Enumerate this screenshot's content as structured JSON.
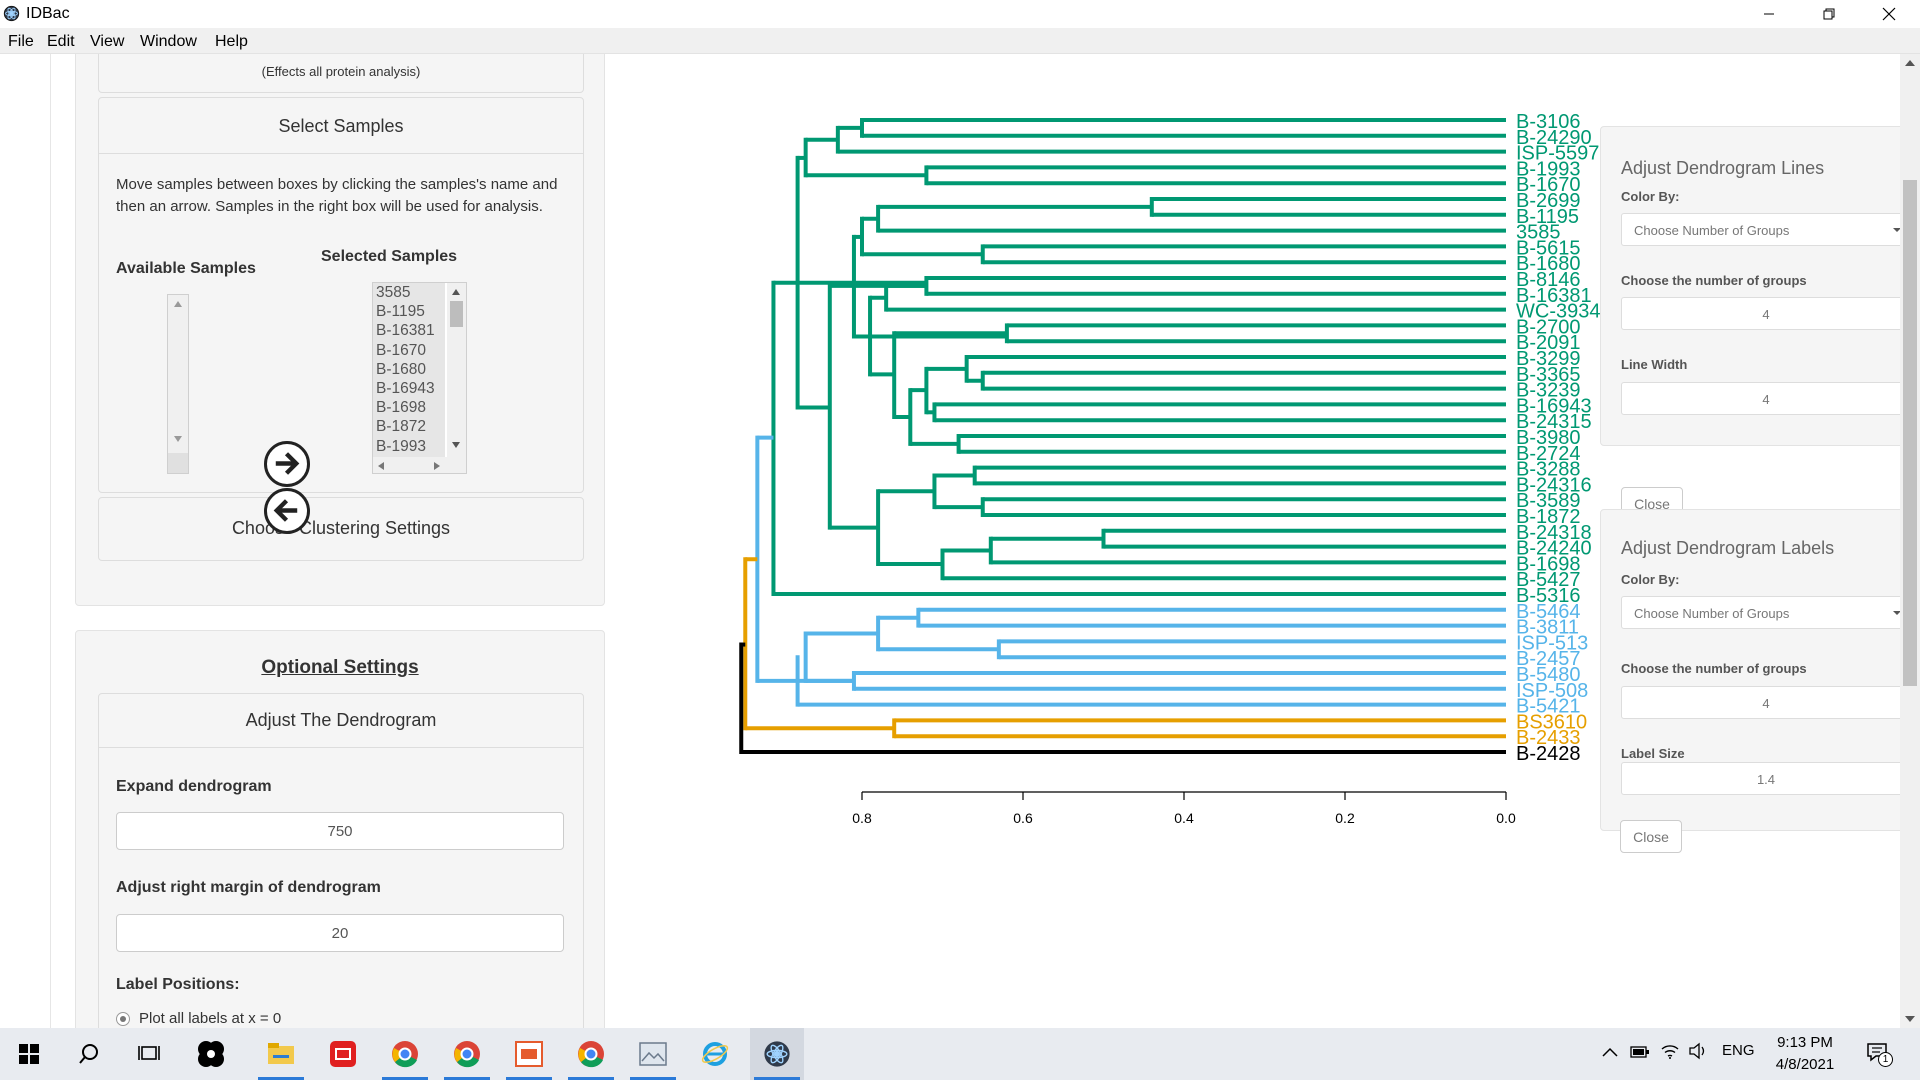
{
  "window": {
    "title": "IDBac"
  },
  "menu": [
    "File",
    "Edit",
    "View",
    "Window",
    "Help"
  ],
  "sidebar": {
    "effects_note": "(Effects all protein analysis)",
    "select_samples": {
      "header": "Select Samples",
      "instructions": "Move samples between boxes by clicking the samples's name and then an arrow. Samples in the right box will be used for analysis.",
      "available_label": "Available Samples",
      "selected_label": "Selected Samples",
      "selected_items": [
        "3585",
        "B-1195",
        "B-16381",
        "B-1670",
        "B-1680",
        "B-16943",
        "B-1698",
        "B-1872",
        "B-1993"
      ]
    },
    "clustering_header": "Choose Clustering Settings",
    "optional": {
      "title": "Optional Settings",
      "adjust_header": "Adjust The Dendrogram",
      "expand_label": "Expand dendrogram",
      "expand_value": "750",
      "margin_label": "Adjust right margin of dendrogram",
      "margin_value": "20",
      "label_positions_label": "Label Positions:",
      "radio_option": "Plot all labels at x = 0"
    }
  },
  "lines_panel": {
    "title": "Adjust Dendrogram Lines",
    "color_by_label": "Color By:",
    "color_by_value": "Choose Number of Groups",
    "groups_label": "Choose the number of groups",
    "groups_value": "4",
    "width_label": "Line Width",
    "width_value": "4",
    "close": "Close"
  },
  "labels_panel": {
    "title": "Adjust Dendrogram Labels",
    "color_by_label": "Color By:",
    "color_by_value": "Choose Number of Groups",
    "groups_label": "Choose the number of groups",
    "groups_value": "4",
    "size_label": "Label Size",
    "size_value": "1.4",
    "close": "Close"
  },
  "chart_data": {
    "type": "dendrogram",
    "orientation": "horizontal, leaves on right",
    "x_ticks": [
      "0.8",
      "0.6",
      "0.4",
      "0.2",
      "0.0"
    ],
    "xlim": [
      0.82,
      0.0
    ],
    "group_colors": [
      "#009872",
      "#56b4e9",
      "#e69f00",
      "#000000"
    ],
    "leaves": [
      {
        "label": "B-3106",
        "group": 0
      },
      {
        "label": "B-24290",
        "group": 0
      },
      {
        "label": "ISP-5597",
        "group": 0
      },
      {
        "label": "B-1993",
        "group": 0
      },
      {
        "label": "B-1670",
        "group": 0
      },
      {
        "label": "B-2699",
        "group": 0
      },
      {
        "label": "B-1195",
        "group": 0
      },
      {
        "label": "3585",
        "group": 0
      },
      {
        "label": "B-5615",
        "group": 0
      },
      {
        "label": "B-1680",
        "group": 0
      },
      {
        "label": "B-8146",
        "group": 0
      },
      {
        "label": "B-16381",
        "group": 0
      },
      {
        "label": "WC-3934",
        "group": 0
      },
      {
        "label": "B-2700",
        "group": 0
      },
      {
        "label": "B-2091",
        "group": 0
      },
      {
        "label": "B-3299",
        "group": 0
      },
      {
        "label": "B-3365",
        "group": 0
      },
      {
        "label": "B-3239",
        "group": 0
      },
      {
        "label": "B-16943",
        "group": 0
      },
      {
        "label": "B-24315",
        "group": 0
      },
      {
        "label": "B-3980",
        "group": 0
      },
      {
        "label": "B-2724",
        "group": 0
      },
      {
        "label": "B-3288",
        "group": 0
      },
      {
        "label": "B-24316",
        "group": 0
      },
      {
        "label": "B-3589",
        "group": 0
      },
      {
        "label": "B-1872",
        "group": 0
      },
      {
        "label": "B-24318",
        "group": 0
      },
      {
        "label": "B-24240",
        "group": 0
      },
      {
        "label": "B-1698",
        "group": 0
      },
      {
        "label": "B-5427",
        "group": 0
      },
      {
        "label": "B-5316",
        "group": 0
      },
      {
        "label": "B-5464",
        "group": 1
      },
      {
        "label": "B-3811",
        "group": 1
      },
      {
        "label": "ISP-513",
        "group": 1
      },
      {
        "label": "B-2457",
        "group": 1
      },
      {
        "label": "B-5480",
        "group": 1
      },
      {
        "label": "ISP-508",
        "group": 1
      },
      {
        "label": "B-5421",
        "group": 1
      },
      {
        "label": "BS3610",
        "group": 2
      },
      {
        "label": "B-2433",
        "group": 2
      },
      {
        "label": "B-2428",
        "group": 3
      }
    ],
    "segments": [
      {
        "h": 0.8,
        "a": 0,
        "b": 1,
        "g": 0
      },
      {
        "h": 0.83,
        "a": 0.5,
        "b": 2,
        "g": 0
      },
      {
        "h": 0.72,
        "a": 3,
        "b": 4,
        "g": 0
      },
      {
        "h": 0.87,
        "a": 1.25,
        "b": 3.5,
        "g": 0
      },
      {
        "h": 0.44,
        "a": 5,
        "b": 6,
        "g": 0
      },
      {
        "h": 0.78,
        "a": 5.5,
        "b": 7,
        "g": 0
      },
      {
        "h": 0.65,
        "a": 8,
        "b": 9,
        "g": 0
      },
      {
        "h": 0.8,
        "a": 6.25,
        "b": 8.5,
        "g": 0
      },
      {
        "h": 0.72,
        "a": 10,
        "b": 11,
        "g": 0
      },
      {
        "h": 0.77,
        "a": 10.5,
        "b": 12,
        "g": 0
      },
      {
        "h": 0.62,
        "a": 13,
        "b": 14,
        "g": 0
      },
      {
        "h": 0.65,
        "a": 16,
        "b": 17,
        "g": 0
      },
      {
        "h": 0.67,
        "a": 15,
        "b": 16.5,
        "g": 0
      },
      {
        "h": 0.71,
        "a": 18,
        "b": 19,
        "g": 0
      },
      {
        "h": 0.72,
        "a": 15.75,
        "b": 18.5,
        "g": 0
      },
      {
        "h": 0.68,
        "a": 20,
        "b": 21,
        "g": 0
      },
      {
        "h": 0.74,
        "a": 17.1,
        "b": 20.5,
        "g": 0
      },
      {
        "h": 0.76,
        "a": 13.5,
        "b": 18.8,
        "g": 0
      },
      {
        "h": 0.79,
        "a": 11.25,
        "b": 16.1,
        "g": 0
      },
      {
        "h": 0.81,
        "a": 7.4,
        "b": 13.7,
        "g": 0
      },
      {
        "h": 0.66,
        "a": 22,
        "b": 23,
        "g": 0
      },
      {
        "h": 0.65,
        "a": 24,
        "b": 25,
        "g": 0
      },
      {
        "h": 0.71,
        "a": 22.5,
        "b": 24.5,
        "g": 0
      },
      {
        "h": 0.5,
        "a": 26,
        "b": 27,
        "g": 0
      },
      {
        "h": 0.64,
        "a": 26.5,
        "b": 28,
        "g": 0
      },
      {
        "h": 0.7,
        "a": 27.25,
        "b": 29,
        "g": 0
      },
      {
        "h": 0.78,
        "a": 23.5,
        "b": 28.1,
        "g": 0
      },
      {
        "h": 0.84,
        "a": 10.5,
        "b": 25.8,
        "g": 0
      },
      {
        "h": 0.88,
        "a": 2.4,
        "b": 18.2,
        "g": 0
      },
      {
        "h": 0.91,
        "a": 10.3,
        "b": 30,
        "g": 0
      },
      {
        "h": 0.73,
        "a": 31,
        "b": 32,
        "g": 1
      },
      {
        "h": 0.63,
        "a": 33,
        "b": 34,
        "g": 1
      },
      {
        "h": 0.78,
        "a": 31.5,
        "b": 33.5,
        "g": 1
      },
      {
        "h": 0.81,
        "a": 35,
        "b": 36,
        "g": 1
      },
      {
        "h": 0.87,
        "a": 32.5,
        "b": 35.5,
        "g": 1
      },
      {
        "h": 0.88,
        "a": 34,
        "b": 37,
        "g": 1
      },
      {
        "h": 0.93,
        "a": 20.1,
        "b": 35.5,
        "g": 1
      },
      {
        "h": 0.76,
        "a": 38,
        "b": 39,
        "g": 2
      },
      {
        "h": 0.945,
        "a": 27.8,
        "b": 38.5,
        "g": 2
      },
      {
        "h": 0.95,
        "a": 33.2,
        "b": 40,
        "g": 3
      }
    ]
  },
  "taskbar": {
    "lang": "ENG",
    "time": "9:13 PM",
    "date": "4/8/2021",
    "notif_count": "1"
  }
}
